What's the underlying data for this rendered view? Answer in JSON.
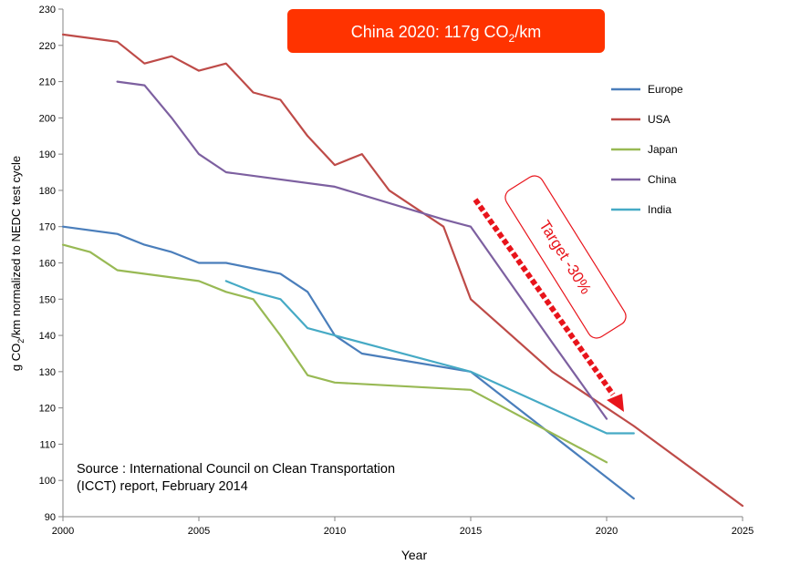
{
  "chart_data": {
    "type": "line",
    "title": "",
    "xlabel": "Year",
    "ylabel_parts": [
      "g CO",
      "2",
      "/km normalized to NEDC test cycle"
    ],
    "xlim": [
      2000,
      2025
    ],
    "ylim": [
      90,
      230
    ],
    "x_ticks": [
      2000,
      2005,
      2010,
      2015,
      2020,
      2025
    ],
    "y_ticks": [
      90,
      100,
      110,
      120,
      130,
      140,
      150,
      160,
      170,
      180,
      190,
      200,
      210,
      220,
      230
    ],
    "grid": false,
    "legend_position": "right",
    "series": [
      {
        "name": "Europe",
        "color": "#4a7ebb",
        "points": [
          [
            2000,
            170
          ],
          [
            2002,
            168
          ],
          [
            2003,
            165
          ],
          [
            2004,
            163
          ],
          [
            2005,
            160
          ],
          [
            2006,
            160
          ],
          [
            2007,
            158.5
          ],
          [
            2008,
            157
          ],
          [
            2009,
            152
          ],
          [
            2010,
            140
          ],
          [
            2011,
            135
          ],
          [
            2015,
            130
          ],
          [
            2021,
            95
          ]
        ]
      },
      {
        "name": "USA",
        "color": "#be4b48",
        "points": [
          [
            2000,
            223
          ],
          [
            2002,
            221
          ],
          [
            2003,
            215
          ],
          [
            2004,
            217
          ],
          [
            2005,
            213
          ],
          [
            2006,
            215
          ],
          [
            2007,
            207
          ],
          [
            2008,
            205
          ],
          [
            2009,
            195
          ],
          [
            2010,
            187
          ],
          [
            2011,
            190
          ],
          [
            2012,
            180
          ],
          [
            2014,
            170
          ],
          [
            2015,
            150
          ],
          [
            2018,
            130
          ],
          [
            2021,
            115
          ],
          [
            2025,
            93
          ]
        ]
      },
      {
        "name": "Japan",
        "color": "#98b954",
        "points": [
          [
            2000,
            165
          ],
          [
            2001,
            163
          ],
          [
            2002,
            158
          ],
          [
            2005,
            155
          ],
          [
            2006,
            152
          ],
          [
            2007,
            150
          ],
          [
            2008,
            140
          ],
          [
            2009,
            129
          ],
          [
            2010,
            127
          ],
          [
            2015,
            125
          ],
          [
            2020,
            105
          ]
        ]
      },
      {
        "name": "China",
        "color": "#7d60a0",
        "points": [
          [
            2002,
            210
          ],
          [
            2003,
            209
          ],
          [
            2004,
            200
          ],
          [
            2005,
            190
          ],
          [
            2006,
            185
          ],
          [
            2010,
            181
          ],
          [
            2014,
            172
          ],
          [
            2015,
            170
          ],
          [
            2018,
            138
          ],
          [
            2020,
            117
          ]
        ]
      },
      {
        "name": "India",
        "color": "#46aac5",
        "points": [
          [
            2006,
            155
          ],
          [
            2007,
            152
          ],
          [
            2008,
            150
          ],
          [
            2009,
            142
          ],
          [
            2015,
            130
          ],
          [
            2020,
            113
          ],
          [
            2021,
            113
          ]
        ]
      }
    ],
    "annotations": {
      "banner_prefix": "China 2020: 117g CO",
      "banner_sub": "2",
      "banner_suffix": "/km",
      "banner_color": "#ff3300",
      "target_label": "Target -30%",
      "target_color": "#e8141b",
      "source_line1": "Source : International Council on Clean Transportation",
      "source_line2": "(ICCT) report, February 2014"
    }
  }
}
